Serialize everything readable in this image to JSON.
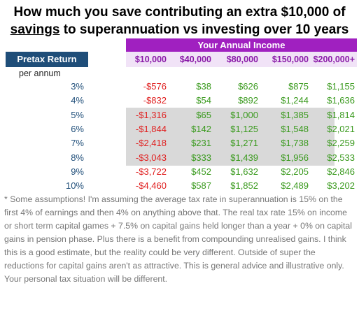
{
  "title": {
    "line1": "How much you save contributing an extra $10,000 of",
    "line2_underlined": "savings",
    "line2_rest": " to superannuation vs investing over 10 years"
  },
  "table": {
    "income_header": "Your Annual Income",
    "pretax_header": "Pretax Return",
    "per_annum": "per annum",
    "incomes": [
      "$10,000",
      "$40,000",
      "$80,000",
      "$150,000",
      "$200,000+"
    ],
    "rows": [
      {
        "rate": "3%",
        "values": [
          "-$576",
          "$38",
          "$626",
          "$875",
          "$1,155"
        ]
      },
      {
        "rate": "4%",
        "values": [
          "-$832",
          "$54",
          "$892",
          "$1,244",
          "$1,636"
        ]
      },
      {
        "rate": "5%",
        "values": [
          "-$1,316",
          "$65",
          "$1,000",
          "$1,385",
          "$1,814"
        ]
      },
      {
        "rate": "6%",
        "values": [
          "-$1,844",
          "$142",
          "$1,125",
          "$1,548",
          "$2,021"
        ]
      },
      {
        "rate": "7%",
        "values": [
          "-$2,418",
          "$231",
          "$1,271",
          "$1,738",
          "$2,259"
        ]
      },
      {
        "rate": "8%",
        "values": [
          "-$3,043",
          "$333",
          "$1,439",
          "$1,956",
          "$2,533"
        ]
      },
      {
        "rate": "9%",
        "values": [
          "-$3,722",
          "$452",
          "$1,632",
          "$2,205",
          "$2,846"
        ]
      },
      {
        "rate": "10%",
        "values": [
          "-$4,460",
          "$587",
          "$1,852",
          "$2,489",
          "$3,202"
        ]
      }
    ]
  },
  "footnote": "* Some assumptions!  I'm assuming the average tax rate in superannuation is 15% on the first 4% of earnings and then 4% on anything above that. The real tax rate 15% on income or short term capital games + 7.5% on capital gains held longer than a year + 0% on capital gains in pension phase. Plus there is a benefit from compounding unrealised gains. I think this is a good estimate, but the reality could be very different. Outside of super the reductions for capital gains aren't as attractive. This is general advice and illustrative only. Your personal tax situation will be different.",
  "colors": {
    "income_header_bg": "#a020c0",
    "pretax_header_bg": "#1f4e79",
    "negative": "#e02020",
    "positive": "#3a9a1e",
    "shaded_rows": "#d9d9d9"
  }
}
